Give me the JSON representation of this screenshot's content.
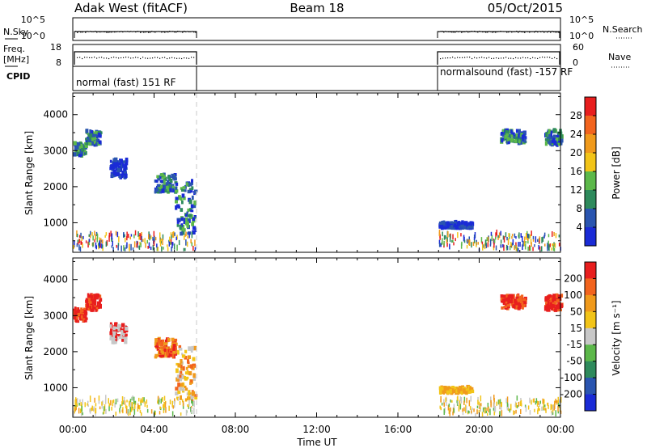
{
  "header": {
    "title": "Adak West (fitACF)",
    "beam": "Beam 18",
    "date": "05/Oct/2015"
  },
  "strips": {
    "nsky_label": "N.Sky",
    "nsky_ticks": [
      "10^5",
      "10^0"
    ],
    "nsky_right_ticks": [
      "10^5",
      "10^0"
    ],
    "nsearch_label": "N.Search",
    "freq_label": "Freq.",
    "freq_unit": "[MHz]",
    "freq_ticks": [
      "18",
      "8"
    ],
    "nave_label": "Nave",
    "nave_ticks": [
      "60",
      "0"
    ],
    "cpid_label": "CPID",
    "cpid_segments": [
      "normal (fast) 151 RF",
      "normalsound (fast) -157 RF"
    ]
  },
  "chart_data": [
    {
      "type": "heatmap",
      "quantity": "power",
      "ylabel": "Slant Range [km]",
      "xlabel": "Time UT",
      "xticks": [
        "00:00",
        "04:00",
        "08:00",
        "12:00",
        "16:00",
        "20:00",
        "00:00"
      ],
      "xlim_hours": [
        0,
        24
      ],
      "yticks": [
        "1000",
        "2000",
        "3000",
        "4000"
      ],
      "ylim": [
        180,
        4600
      ],
      "colorbar": {
        "label": "Power [dB]",
        "ticks": [
          "4",
          "8",
          "12",
          "16",
          "20",
          "24",
          "28"
        ],
        "range": [
          0,
          32
        ],
        "colors": [
          "#1a2bd6",
          "#2a55b0",
          "#2e8a5c",
          "#5cb84a",
          "#f2c418",
          "#f09a1c",
          "#f2641e",
          "#e81e1e"
        ]
      },
      "data_gap_hours": [
        6,
        18
      ],
      "echo_regions": [
        {
          "t": [
            0.0,
            0.6
          ],
          "range_km": [
            2800,
            3150
          ],
          "level": "mixed-high"
        },
        {
          "t": [
            0.6,
            1.3
          ],
          "range_km": [
            3100,
            3500
          ],
          "level": "mixed"
        },
        {
          "t": [
            1.8,
            2.6
          ],
          "range_km": [
            2200,
            2700
          ],
          "level": "low"
        },
        {
          "t": [
            4.0,
            5.0
          ],
          "range_km": [
            1800,
            2300
          ],
          "level": "mixed"
        },
        {
          "t": [
            5.0,
            6.0
          ],
          "range_km": [
            600,
            2100
          ],
          "level": "mixed"
        },
        {
          "t": [
            18.0,
            19.6
          ],
          "range_km": [
            800,
            950
          ],
          "level": "low"
        },
        {
          "t": [
            21.0,
            22.2
          ],
          "range_km": [
            3150,
            3500
          ],
          "level": "mixed"
        },
        {
          "t": [
            23.2,
            24.0
          ],
          "range_km": [
            3100,
            3500
          ],
          "level": "mixed"
        },
        {
          "t": [
            0.0,
            6.0
          ],
          "range_km": [
            200,
            650
          ],
          "level": "sparse"
        },
        {
          "t": [
            18.0,
            24.0
          ],
          "range_km": [
            200,
            650
          ],
          "level": "sparse"
        }
      ]
    },
    {
      "type": "heatmap",
      "quantity": "velocity",
      "ylabel": "Slant Range [km]",
      "xlabel": "Time UT",
      "xticks": [
        "00:00",
        "04:00",
        "08:00",
        "12:00",
        "16:00",
        "20:00",
        "00:00"
      ],
      "xlim_hours": [
        0,
        24
      ],
      "yticks": [
        "1000",
        "2000",
        "3000",
        "4000"
      ],
      "ylim": [
        180,
        4600
      ],
      "colorbar": {
        "label": "Velocity [m s⁻¹]",
        "ticks": [
          "200",
          "100",
          "50",
          "15",
          "-15",
          "-50",
          "-100",
          "-200"
        ],
        "range": [
          -250,
          250
        ],
        "colors": [
          "#1a2bd6",
          "#2a55b0",
          "#2e8a5c",
          "#5cb84a",
          "#c8c8c8",
          "#f2c418",
          "#f09a1c",
          "#f2641e",
          "#e81e1e"
        ]
      },
      "data_gap_hours": [
        6,
        18
      ],
      "echo_regions": [
        {
          "t": [
            0.0,
            0.6
          ],
          "range_km": [
            2800,
            3150
          ],
          "level": "red"
        },
        {
          "t": [
            0.6,
            1.3
          ],
          "range_km": [
            3100,
            3500
          ],
          "level": "red"
        },
        {
          "t": [
            1.8,
            2.6
          ],
          "range_km": [
            2200,
            2700
          ],
          "level": "grey"
        },
        {
          "t": [
            4.0,
            5.0
          ],
          "range_km": [
            1800,
            2300
          ],
          "level": "red-orange"
        },
        {
          "t": [
            5.0,
            6.0
          ],
          "range_km": [
            600,
            2100
          ],
          "level": "orange"
        },
        {
          "t": [
            18.0,
            19.6
          ],
          "range_km": [
            800,
            950
          ],
          "level": "yellow"
        },
        {
          "t": [
            21.0,
            22.2
          ],
          "range_km": [
            3150,
            3500
          ],
          "level": "red"
        },
        {
          "t": [
            23.2,
            24.0
          ],
          "range_km": [
            3100,
            3500
          ],
          "level": "red"
        },
        {
          "t": [
            0.0,
            6.0
          ],
          "range_km": [
            200,
            650
          ],
          "level": "yellow-sparse"
        },
        {
          "t": [
            18.0,
            24.0
          ],
          "range_km": [
            200,
            650
          ],
          "level": "yellow-sparse"
        }
      ]
    }
  ]
}
